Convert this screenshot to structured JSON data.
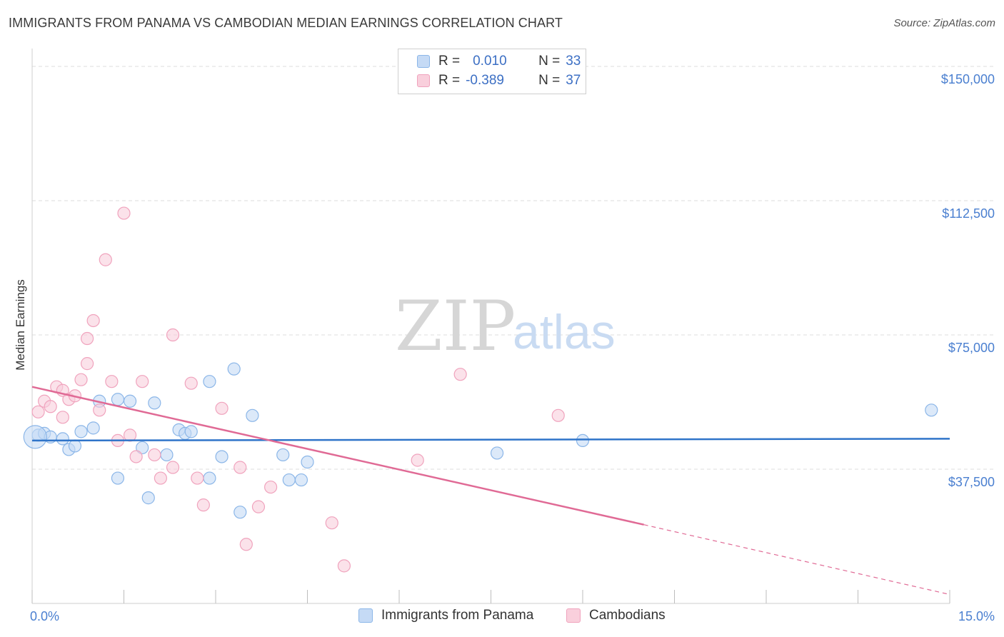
{
  "title": "IMMIGRANTS FROM PANAMA VS CAMBODIAN MEDIAN EARNINGS CORRELATION CHART",
  "source": "Source: ZipAtlas.com",
  "watermark": {
    "zip": "ZIP",
    "atlas": "atlas"
  },
  "colors": {
    "blue": "#8bb6e8",
    "blue_fill": "#c5daf5",
    "blue_line": "#2f74c9",
    "pink": "#f0a3bd",
    "pink_fill": "#f9cfdc",
    "pink_line": "#e06a95",
    "grid": "#dcdcdc",
    "tick_text": "#4a7fd0"
  },
  "legend": {
    "rows": [
      {
        "r_label": "R =",
        "r_value": "0.010",
        "n_label": "N =",
        "n_value": "33"
      },
      {
        "r_label": "R =",
        "r_value": "-0.389",
        "n_label": "N =",
        "n_value": "37"
      }
    ]
  },
  "bottom_legend": {
    "series1": "Immigrants from Panama",
    "series2": "Cambodians"
  },
  "chart_data": {
    "type": "scatter",
    "title": "IMMIGRANTS FROM PANAMA VS CAMBODIAN MEDIAN EARNINGS CORRELATION CHART",
    "xlabel": "",
    "ylabel": "Median Earnings",
    "xlim": [
      0,
      15
    ],
    "ylim": [
      0,
      153000
    ],
    "x_tick_labels": [
      "0.0%",
      "15.0%"
    ],
    "y_ticks": [
      37500,
      75000,
      112500,
      150000
    ],
    "y_tick_labels": [
      "$37,500",
      "$75,000",
      "$112,500",
      "$150,000"
    ],
    "series": [
      {
        "name": "Immigrants from Panama",
        "r": 0.01,
        "n": 33,
        "trend": {
          "x0": 0,
          "y0": 45500,
          "x1": 15,
          "y1": 46000
        },
        "points": [
          [
            0.1,
            47000
          ],
          [
            0.2,
            47500
          ],
          [
            0.3,
            46500
          ],
          [
            0.5,
            46000
          ],
          [
            0.6,
            43000
          ],
          [
            0.7,
            44000
          ],
          [
            0.8,
            48000
          ],
          [
            1.0,
            49000
          ],
          [
            1.1,
            56500
          ],
          [
            1.4,
            57000
          ],
          [
            1.6,
            56500
          ],
          [
            1.8,
            43500
          ],
          [
            2.0,
            56000
          ],
          [
            2.2,
            41500
          ],
          [
            2.4,
            48500
          ],
          [
            2.5,
            47500
          ],
          [
            2.6,
            48000
          ],
          [
            2.9,
            62000
          ],
          [
            3.1,
            41000
          ],
          [
            3.3,
            65500
          ],
          [
            3.6,
            52500
          ],
          [
            4.1,
            41500
          ],
          [
            4.5,
            39500
          ],
          [
            1.4,
            35000
          ],
          [
            1.9,
            29500
          ],
          [
            2.9,
            35000
          ],
          [
            3.4,
            25500
          ],
          [
            4.2,
            34500
          ],
          [
            4.4,
            34500
          ],
          [
            7.6,
            42000
          ],
          [
            9.0,
            45500
          ],
          [
            14.7,
            54000
          ],
          [
            0.05,
            46500
          ]
        ]
      },
      {
        "name": "Cambodians",
        "r": -0.389,
        "n": 37,
        "trend": {
          "x0": 0,
          "y0": 60500,
          "x1": 10.0,
          "y1": 22000,
          "dash_to_x": 15,
          "dash_to_y": 2500
        },
        "points": [
          [
            0.1,
            53500
          ],
          [
            0.2,
            56500
          ],
          [
            0.3,
            55000
          ],
          [
            0.4,
            60500
          ],
          [
            0.5,
            59500
          ],
          [
            0.6,
            57000
          ],
          [
            0.7,
            58000
          ],
          [
            0.8,
            62500
          ],
          [
            0.9,
            67000
          ],
          [
            1.0,
            79000
          ],
          [
            1.1,
            54000
          ],
          [
            1.2,
            96000
          ],
          [
            1.3,
            62000
          ],
          [
            1.4,
            45500
          ],
          [
            1.5,
            109000
          ],
          [
            1.6,
            47000
          ],
          [
            1.7,
            41000
          ],
          [
            1.8,
            62000
          ],
          [
            2.0,
            41500
          ],
          [
            2.1,
            35000
          ],
          [
            2.3,
            38000
          ],
          [
            2.3,
            75000
          ],
          [
            2.6,
            61500
          ],
          [
            2.7,
            35000
          ],
          [
            2.8,
            27500
          ],
          [
            3.1,
            54500
          ],
          [
            3.4,
            38000
          ],
          [
            3.5,
            16500
          ],
          [
            3.7,
            27000
          ],
          [
            3.9,
            32500
          ],
          [
            4.9,
            22500
          ],
          [
            5.1,
            10500
          ],
          [
            6.3,
            40000
          ],
          [
            7.0,
            64000
          ],
          [
            8.6,
            52500
          ],
          [
            0.9,
            74000
          ],
          [
            0.5,
            52000
          ]
        ]
      }
    ]
  }
}
